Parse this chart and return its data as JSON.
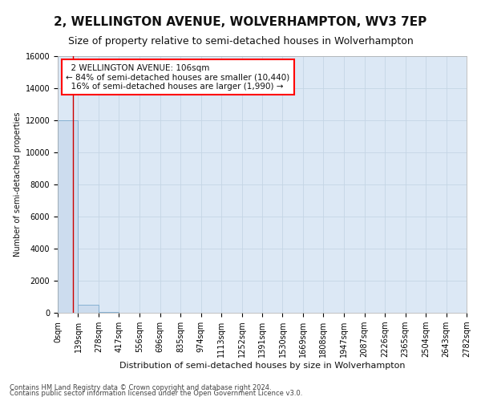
{
  "title_line1": "2, WELLINGTON AVENUE, WOLVERHAMPTON, WV3 7EP",
  "title_line2": "Size of property relative to semi-detached houses in Wolverhampton",
  "xlabel": "Distribution of semi-detached houses by size in Wolverhampton",
  "ylabel": "Number of semi-detached properties",
  "footnote1": "Contains HM Land Registry data © Crown copyright and database right 2024.",
  "footnote2": "Contains public sector information licensed under the Open Government Licence v3.0.",
  "bin_edges": [
    0,
    139,
    278,
    417,
    556,
    696,
    835,
    974,
    1113,
    1252,
    1391,
    1530,
    1669,
    1808,
    1947,
    2087,
    2226,
    2365,
    2504,
    2643,
    2782
  ],
  "bin_labels": [
    "0sqm",
    "139sqm",
    "278sqm",
    "417sqm",
    "556sqm",
    "696sqm",
    "835sqm",
    "974sqm",
    "1113sqm",
    "1252sqm",
    "1391sqm",
    "1530sqm",
    "1669sqm",
    "1808sqm",
    "1947sqm",
    "2087sqm",
    "2226sqm",
    "2365sqm",
    "2504sqm",
    "2643sqm",
    "2782sqm"
  ],
  "bar_heights": [
    12000,
    500,
    40,
    15,
    8,
    4,
    3,
    2,
    2,
    1,
    1,
    1,
    1,
    0,
    0,
    0,
    0,
    0,
    0,
    0
  ],
  "bar_color": "#ccdcee",
  "bar_edge_color": "#7aaace",
  "ylim": [
    0,
    16000
  ],
  "yticks": [
    0,
    2000,
    4000,
    6000,
    8000,
    10000,
    12000,
    14000,
    16000
  ],
  "property_size": 106,
  "smaller_pct": 84,
  "smaller_count": "10,440",
  "larger_pct": 16,
  "larger_count": "1,990",
  "annotation_label": "2 WELLINGTON AVENUE: 106sqm",
  "vline_color": "#cc0000",
  "grid_color": "#c5d5e5",
  "bg_color": "#dce8f5",
  "text_color": "#111111",
  "title1_fontsize": 11,
  "title2_fontsize": 9,
  "ylabel_fontsize": 7,
  "xlabel_fontsize": 8,
  "annot_fontsize": 7.5,
  "tick_fontsize": 7,
  "foot_fontsize": 6
}
